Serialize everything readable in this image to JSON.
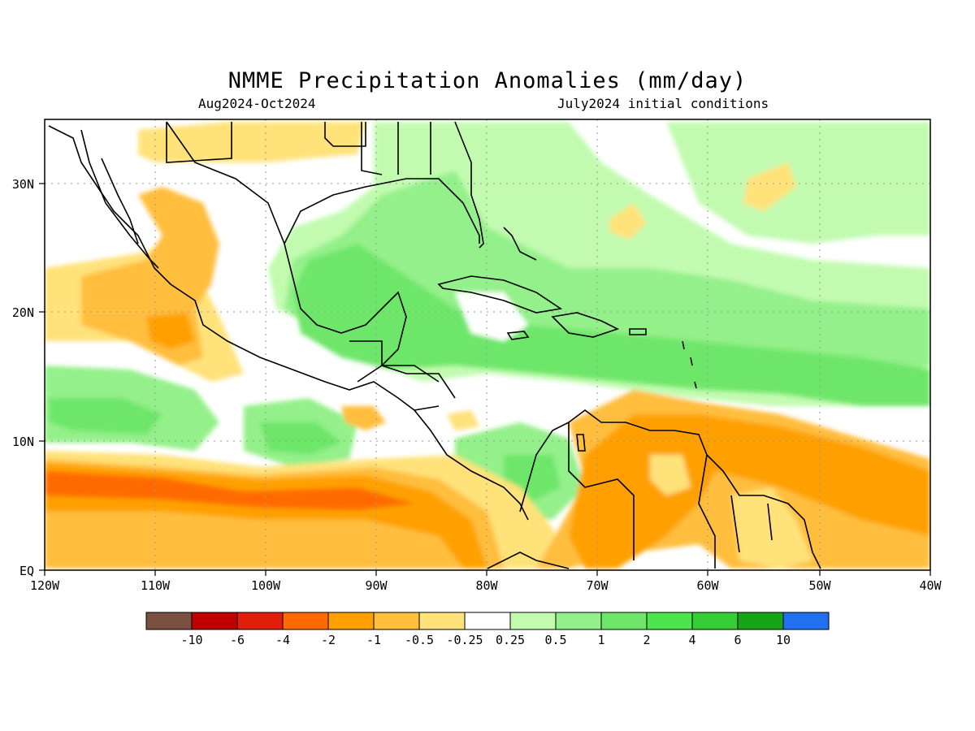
{
  "title": "NMME Precipitation Anomalies (mm/day)",
  "subtitle_left": "Aug2024-Oct2024",
  "subtitle_right": "July2024 initial conditions",
  "map": {
    "lon_range": [
      -120,
      -40
    ],
    "lat_range": [
      0,
      35
    ],
    "x_ticks": [
      "120W",
      "110W",
      "100W",
      "90W",
      "80W",
      "70W",
      "60W",
      "50W",
      "40W"
    ],
    "y_ticks": [
      "EQ",
      "10N",
      "20N",
      "30N"
    ],
    "gridlines": "dotted"
  },
  "legend": {
    "colors": [
      "#7a5040",
      "#c00000",
      "#e01e0a",
      "#ff6a00",
      "#ffa000",
      "#ffbe3c",
      "#ffe27a",
      "#ffffff",
      "#c2fbb0",
      "#94f08a",
      "#6ee66a",
      "#4ee44e",
      "#36cc36",
      "#18a418",
      "#2070f0"
    ],
    "labels": [
      "-10",
      "-6",
      "-4",
      "-2",
      "-1",
      "-0.5",
      "-0.25",
      "0.25",
      "0.5",
      "1",
      "2",
      "4",
      "6",
      "10"
    ]
  }
}
